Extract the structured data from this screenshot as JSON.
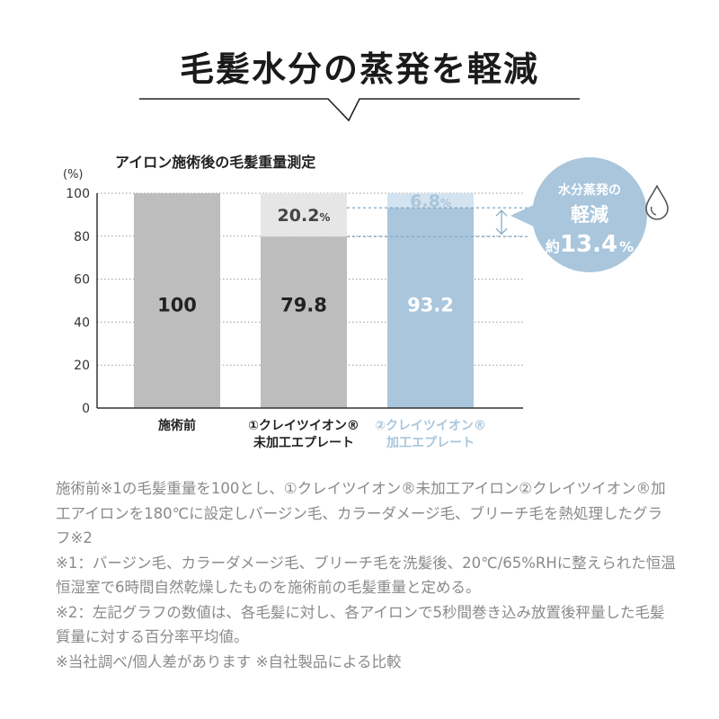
{
  "headline": "毛髪水分の蒸発を軽減",
  "callout": {
    "line1": "水分蒸発の",
    "line2": "軽減",
    "prefix": "約",
    "value": "13.4",
    "unit": "%",
    "icon": "water-drop-icon"
  },
  "colors": {
    "gray_bar": "#bdbdbd",
    "gray_top": "#e6e6e6",
    "blue_bar": "#a9c6dc",
    "blue_top": "#d3e3ef",
    "blue_text": "#a9c6dc"
  },
  "chart_data": {
    "type": "bar",
    "title": "アイロン施術後の毛髪重量測定",
    "ylabel": "(%)",
    "ylim": [
      0,
      100
    ],
    "yticks": [
      "0",
      "20",
      "40",
      "60",
      "80",
      "100"
    ],
    "categories": [
      {
        "line1": "施術前",
        "line2": ""
      },
      {
        "line1": "①クレイツイオン®",
        "line2": "未加工エプレート"
      },
      {
        "line1": "②クレイツイオン®",
        "line2": "加工エプレート"
      }
    ],
    "values": [
      100,
      79.8,
      93.2
    ],
    "value_labels": [
      "100",
      "79.8",
      "93.2"
    ],
    "loss_values": [
      0,
      20.2,
      6.8
    ],
    "loss_labels": [
      "",
      "20.2",
      "6.8"
    ],
    "loss_unit": "%"
  },
  "notes": [
    "施術前※1の毛髪重量を100とし、①クレイツイオン®未加工アイロン②クレイツイオン®加工アイロンを180℃に設定しバージン毛、カラーダメージ毛、ブリーチ毛を熱処理したグラフ※2",
    "※1：バージン毛、カラーダメージ毛、ブリーチ毛を洗髪後、20℃/65%RHに整えられた恒温恒湿室で6時間自然乾燥したものを施術前の毛髪重量と定める。",
    "※2：左記グラフの数値は、各毛髪に対し、各アイロンで5秒間巻き込み放置後秤量した毛髪質量に対する百分率平均値。",
    "※当社調べ/個人差があります ※自社製品による比較"
  ]
}
